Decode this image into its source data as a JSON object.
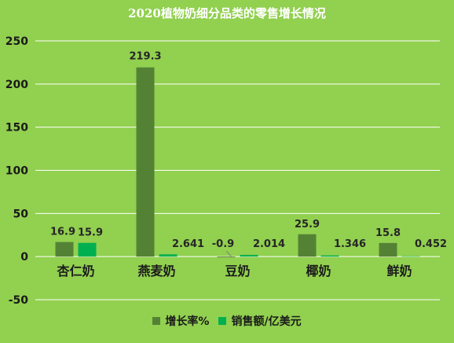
{
  "chart_data": {
    "type": "bar",
    "title": "2020植物奶细分品类的零售增长情况",
    "categories": [
      "杏仁奶",
      "燕麦奶",
      "豆奶",
      "椰奶",
      "鲜奶"
    ],
    "series": [
      {
        "name": "增长率%",
        "color": "#548235",
        "values": [
          16.9,
          219.3,
          -0.9,
          25.9,
          15.8
        ],
        "labels": [
          "16.9",
          "219.3",
          "-0.9",
          "25.9",
          "15.8"
        ]
      },
      {
        "name": "销售额/亿美元",
        "color": "#00b050",
        "values": [
          15.9,
          2.641,
          2.014,
          1.346,
          0.452
        ],
        "labels": [
          "15.9",
          "2.641",
          "2.014",
          "1.346",
          "0.452"
        ]
      }
    ],
    "yticks": [
      "-50",
      "0",
      "50",
      "100",
      "150",
      "200",
      "250"
    ],
    "ylim": [
      -50,
      250
    ],
    "grid": true,
    "legend": "bottom",
    "background": "#92d050"
  }
}
